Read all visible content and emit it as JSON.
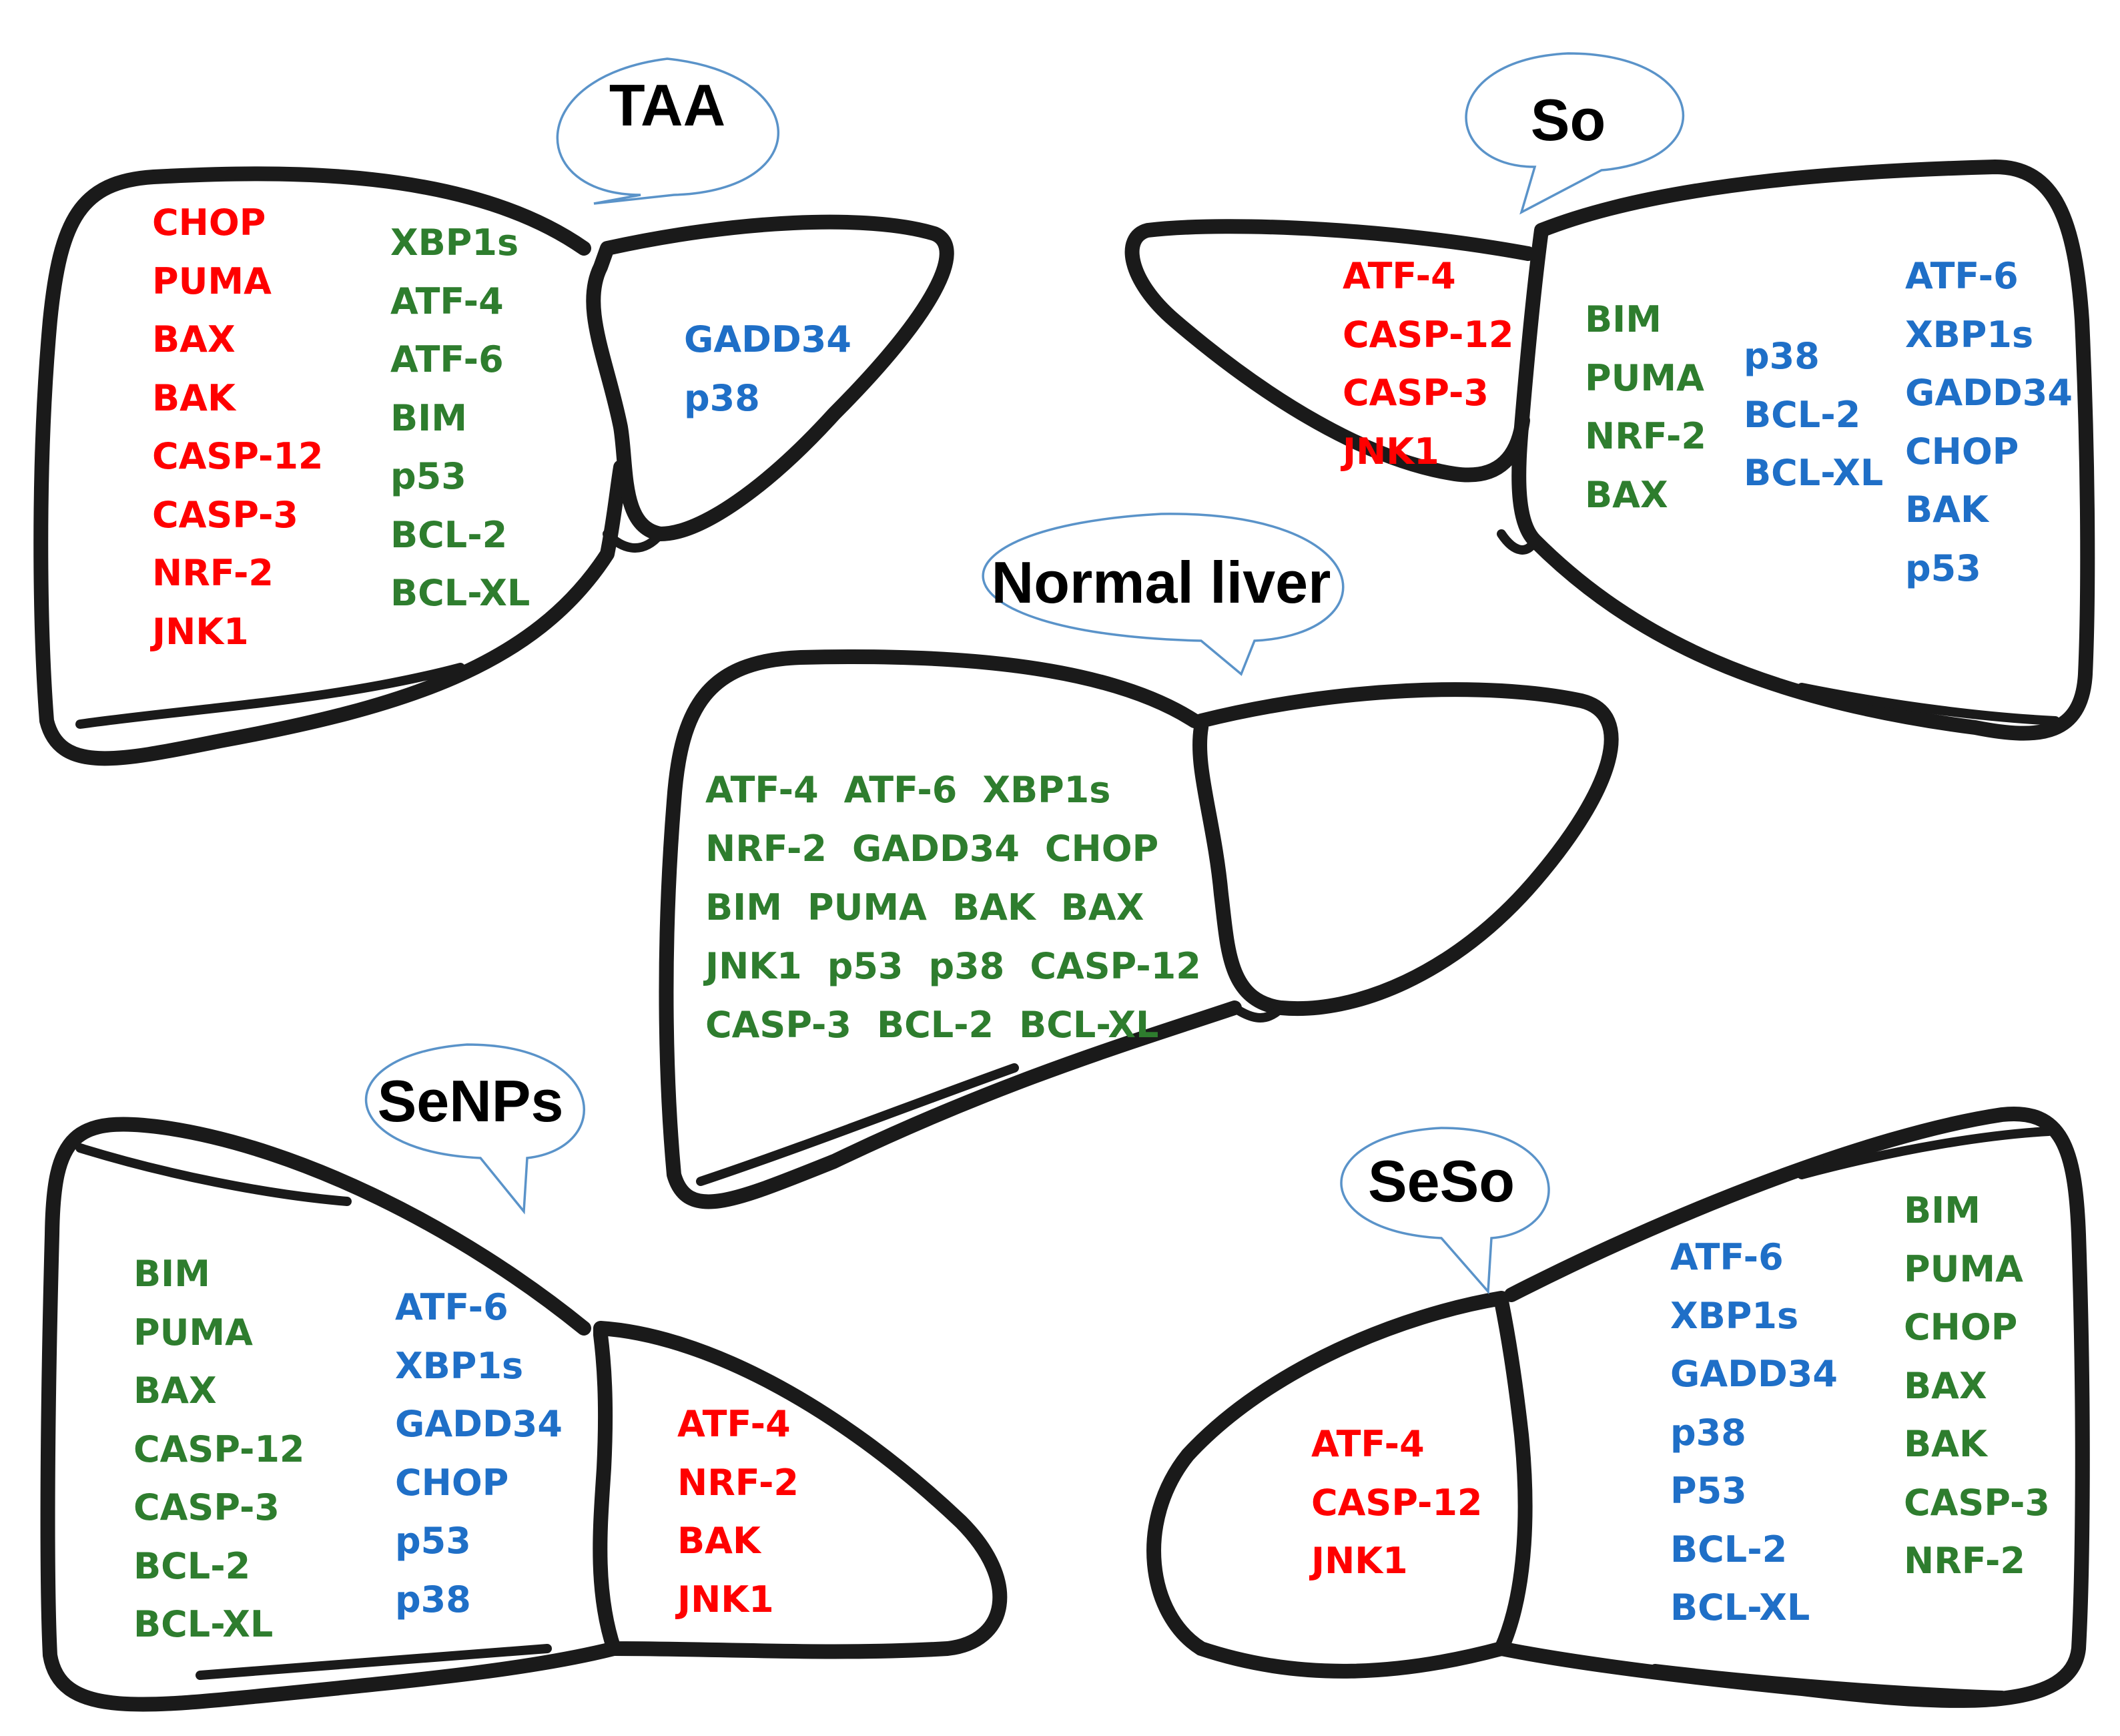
{
  "colors": {
    "up": "#ff0000",
    "normal": "#2e7d2e",
    "down": "#1f6fc7",
    "outline": "#1a1a1a",
    "bubble_stroke": "#5a93c9"
  },
  "legend_note": "red, green and blue gene names",
  "panels": {
    "taa": {
      "label": "TAA",
      "columns": [
        {
          "color": "up",
          "genes": [
            "CHOP",
            "PUMA",
            "BAX",
            "BAK",
            "CASP-12",
            "CASP-3",
            "NRF-2",
            "JNK1"
          ]
        },
        {
          "color": "normal",
          "genes": [
            "XBP1s",
            "ATF-4",
            "ATF-6",
            "BIM",
            "p53",
            "BCL-2",
            "BCL-XL"
          ]
        },
        {
          "color": "down",
          "genes": [
            "GADD34",
            "p38"
          ]
        }
      ]
    },
    "so": {
      "label": "So",
      "columns": [
        {
          "color": "up",
          "genes": [
            "ATF-4",
            "CASP-12",
            "CASP-3",
            "JNK1"
          ]
        },
        {
          "color": "normal",
          "genes": [
            "BIM",
            "PUMA",
            "NRF-2",
            "BAX"
          ]
        },
        {
          "color": "down",
          "genes": [
            "p38",
            "BCL-2",
            "BCL-XL"
          ]
        },
        {
          "color": "down",
          "genes": [
            "ATF-6",
            "XBP1s",
            "GADD34",
            "CHOP",
            "BAK",
            "p53"
          ]
        }
      ]
    },
    "normal": {
      "label": "Normal liver",
      "rows": [
        [
          "ATF-4",
          "ATF-6",
          "XBP1s"
        ],
        [
          "NRF-2",
          "GADD34",
          "CHOP"
        ],
        [
          "BIM",
          "PUMA",
          "BAK",
          "BAX"
        ],
        [
          "JNK1",
          "p53",
          "p38",
          "CASP-12"
        ],
        [
          "CASP-3",
          "BCL-2",
          "BCL-XL"
        ]
      ]
    },
    "senps": {
      "label": "SeNPs",
      "columns": [
        {
          "color": "normal",
          "genes": [
            "BIM",
            "PUMA",
            "BAX",
            "CASP-12",
            "CASP-3",
            "BCL-2",
            "BCL-XL"
          ]
        },
        {
          "color": "down",
          "genes": [
            "ATF-6",
            "XBP1s",
            "GADD34",
            "CHOP",
            "p53",
            "p38"
          ]
        },
        {
          "color": "up",
          "genes": [
            "ATF-4",
            "NRF-2",
            "BAK",
            "JNK1"
          ]
        }
      ]
    },
    "seso": {
      "label": "SeSo",
      "columns": [
        {
          "color": "up",
          "genes": [
            "ATF-4",
            "CASP-12",
            "JNK1"
          ]
        },
        {
          "color": "down",
          "genes": [
            "ATF-6",
            "XBP1s",
            "GADD34",
            "p38",
            "P53",
            "BCL-2",
            "BCL-XL"
          ]
        },
        {
          "color": "normal",
          "genes": [
            "BIM",
            "PUMA",
            "CHOP",
            "BAX",
            "BAK",
            "CASP-3",
            "NRF-2"
          ]
        }
      ]
    }
  }
}
